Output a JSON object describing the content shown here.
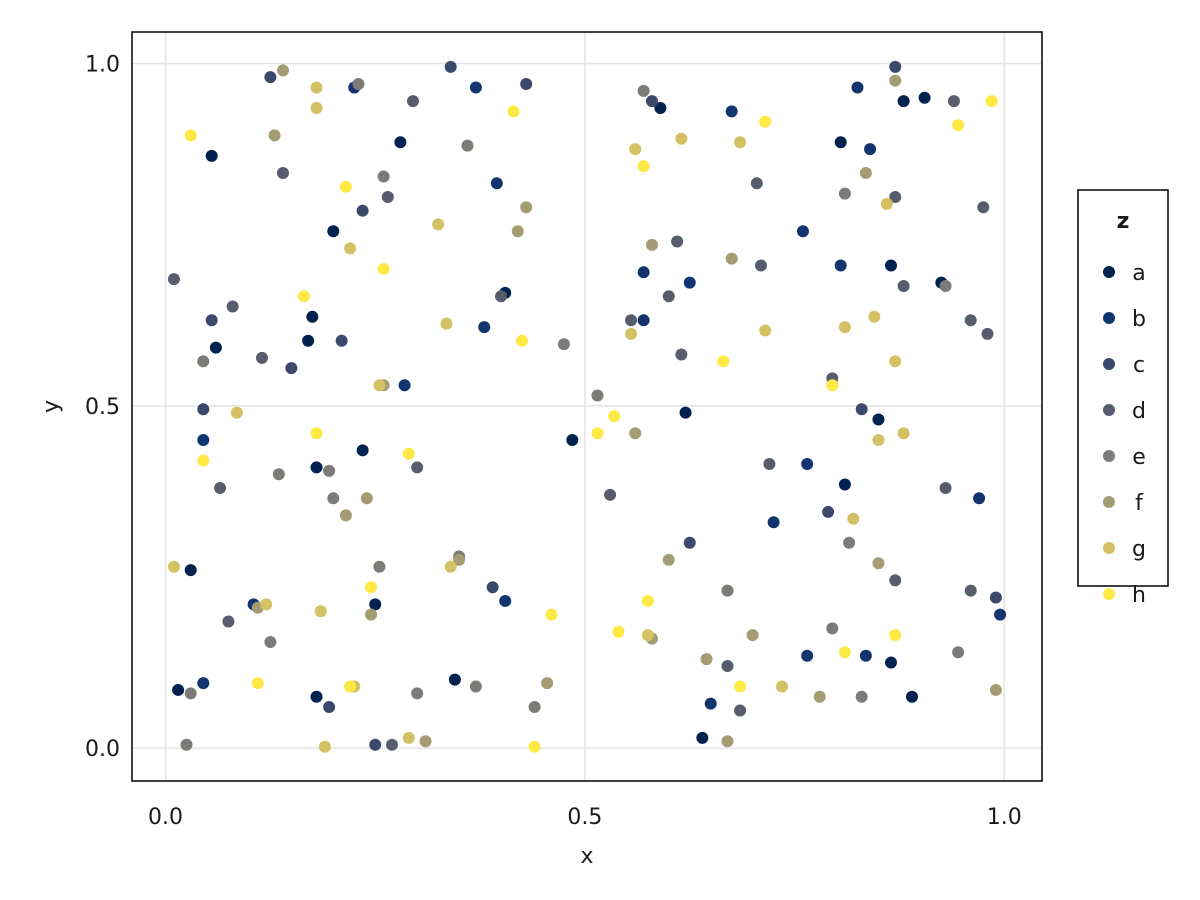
{
  "chart_data": {
    "type": "scatter",
    "xlabel": "x",
    "ylabel": "y",
    "xlim": [
      -0.04,
      1.045
    ],
    "ylim": [
      -0.048,
      1.046
    ],
    "xticks": [
      0.0,
      0.5,
      1.0
    ],
    "xtick_labels": [
      "0.0",
      "0.5",
      "1.0"
    ],
    "yticks": [
      0.0,
      0.5,
      1.0
    ],
    "ytick_labels": [
      "0.0",
      "0.5",
      "1.0"
    ],
    "grid": true,
    "legend": {
      "title": "z",
      "position": "right"
    },
    "series": [
      {
        "name": "a",
        "color": "#00224e",
        "x": [
          0.055,
          0.06,
          0.2,
          0.28,
          0.175,
          0.17,
          0.18,
          0.235,
          0.03,
          0.25,
          0.015,
          0.18,
          0.345,
          0.405,
          0.485,
          0.59,
          0.805,
          0.88,
          0.905,
          0.865,
          0.925,
          0.85,
          0.62,
          0.81,
          0.865,
          0.89,
          0.64
        ],
        "y": [
          0.865,
          0.585,
          0.755,
          0.885,
          0.63,
          0.595,
          0.41,
          0.435,
          0.26,
          0.21,
          0.085,
          0.075,
          0.1,
          0.665,
          0.45,
          0.935,
          0.885,
          0.945,
          0.95,
          0.705,
          0.68,
          0.48,
          0.49,
          0.385,
          0.125,
          0.075,
          0.015
        ]
      },
      {
        "name": "b",
        "color": "#123570",
        "x": [
          0.225,
          0.37,
          0.395,
          0.38,
          0.045,
          0.105,
          0.045,
          0.285,
          0.405,
          0.57,
          0.57,
          0.625,
          0.675,
          0.76,
          0.805,
          0.825,
          0.84,
          0.765,
          0.725,
          0.97,
          0.995,
          0.765,
          0.835,
          0.65
        ],
        "y": [
          0.965,
          0.965,
          0.825,
          0.615,
          0.45,
          0.21,
          0.095,
          0.53,
          0.215,
          0.695,
          0.625,
          0.68,
          0.93,
          0.755,
          0.705,
          0.965,
          0.875,
          0.415,
          0.33,
          0.365,
          0.195,
          0.135,
          0.135,
          0.065
        ]
      },
      {
        "name": "c",
        "color": "#3b496c",
        "x": [
          0.125,
          0.34,
          0.43,
          0.235,
          0.055,
          0.15,
          0.21,
          0.045,
          0.39,
          0.195,
          0.25,
          0.87,
          0.83,
          0.79,
          0.625,
          0.99,
          0.58
        ],
        "y": [
          0.98,
          0.995,
          0.97,
          0.785,
          0.625,
          0.555,
          0.595,
          0.495,
          0.235,
          0.06,
          0.005,
          0.995,
          0.495,
          0.345,
          0.3,
          0.22,
          0.945
        ]
      },
      {
        "name": "d",
        "color": "#575d6d",
        "x": [
          0.295,
          0.01,
          0.08,
          0.115,
          0.14,
          0.265,
          0.3,
          0.4,
          0.065,
          0.075,
          0.27,
          0.705,
          0.71,
          0.61,
          0.6,
          0.555,
          0.615,
          0.72,
          0.795,
          0.87,
          0.88,
          0.94,
          0.975,
          0.96,
          0.98,
          0.93,
          0.87,
          0.53,
          0.67,
          0.96,
          0.685
        ],
        "y": [
          0.945,
          0.685,
          0.645,
          0.57,
          0.84,
          0.805,
          0.41,
          0.66,
          0.38,
          0.185,
          0.005,
          0.825,
          0.705,
          0.74,
          0.66,
          0.625,
          0.575,
          0.415,
          0.54,
          0.805,
          0.675,
          0.945,
          0.79,
          0.625,
          0.605,
          0.38,
          0.245,
          0.37,
          0.12,
          0.23,
          0.055
        ]
      },
      {
        "name": "e",
        "color": "#7c7b78",
        "x": [
          0.23,
          0.36,
          0.26,
          0.045,
          0.135,
          0.195,
          0.125,
          0.03,
          0.025,
          0.3,
          0.35,
          0.475,
          0.57,
          0.81,
          0.815,
          0.93,
          0.515,
          0.44,
          0.795,
          0.83,
          0.945,
          0.37,
          0.255,
          0.2,
          0.67
        ],
        "y": [
          0.97,
          0.88,
          0.835,
          0.565,
          0.4,
          0.405,
          0.155,
          0.08,
          0.005,
          0.08,
          0.28,
          0.59,
          0.96,
          0.81,
          0.3,
          0.675,
          0.515,
          0.06,
          0.175,
          0.075,
          0.14,
          0.09,
          0.265,
          0.365,
          0.23
        ]
      },
      {
        "name": "f",
        "color": "#a59c74",
        "x": [
          0.14,
          0.13,
          0.43,
          0.42,
          0.26,
          0.215,
          0.11,
          0.58,
          0.675,
          0.56,
          0.6,
          0.58,
          0.7,
          0.835,
          0.85,
          0.87,
          0.99,
          0.645,
          0.78,
          0.24,
          0.245,
          0.35,
          0.67,
          0.455,
          0.31
        ],
        "y": [
          0.99,
          0.895,
          0.79,
          0.755,
          0.53,
          0.34,
          0.205,
          0.735,
          0.715,
          0.46,
          0.275,
          0.16,
          0.165,
          0.84,
          0.27,
          0.975,
          0.085,
          0.13,
          0.075,
          0.365,
          0.195,
          0.275,
          0.01,
          0.095,
          0.01
        ]
      },
      {
        "name": "g",
        "color": "#d3c164",
        "x": [
          0.18,
          0.18,
          0.22,
          0.325,
          0.335,
          0.56,
          0.555,
          0.615,
          0.685,
          0.715,
          0.81,
          0.845,
          0.86,
          0.87,
          0.88,
          0.85,
          0.82,
          0.575,
          0.34,
          0.12,
          0.185,
          0.085,
          0.01,
          0.255,
          0.19,
          0.29,
          0.225,
          0.735
        ],
        "y": [
          0.965,
          0.935,
          0.73,
          0.765,
          0.62,
          0.875,
          0.605,
          0.89,
          0.885,
          0.61,
          0.615,
          0.63,
          0.795,
          0.565,
          0.46,
          0.45,
          0.335,
          0.165,
          0.265,
          0.21,
          0.2,
          0.49,
          0.265,
          0.53,
          0.002,
          0.015,
          0.09,
          0.09
        ]
      },
      {
        "name": "h",
        "color": "#ffe945",
        "x": [
          0.03,
          0.415,
          0.57,
          0.715,
          0.945,
          0.985,
          0.215,
          0.165,
          0.26,
          0.425,
          0.045,
          0.18,
          0.29,
          0.535,
          0.515,
          0.665,
          0.795,
          0.245,
          0.46,
          0.575,
          0.54,
          0.87,
          0.81,
          0.11,
          0.22,
          0.685,
          0.44
        ],
        "y": [
          0.895,
          0.93,
          0.85,
          0.915,
          0.91,
          0.945,
          0.82,
          0.66,
          0.7,
          0.595,
          0.42,
          0.46,
          0.43,
          0.485,
          0.46,
          0.565,
          0.53,
          0.235,
          0.195,
          0.215,
          0.17,
          0.165,
          0.14,
          0.095,
          0.09,
          0.09,
          0.002
        ]
      }
    ]
  }
}
